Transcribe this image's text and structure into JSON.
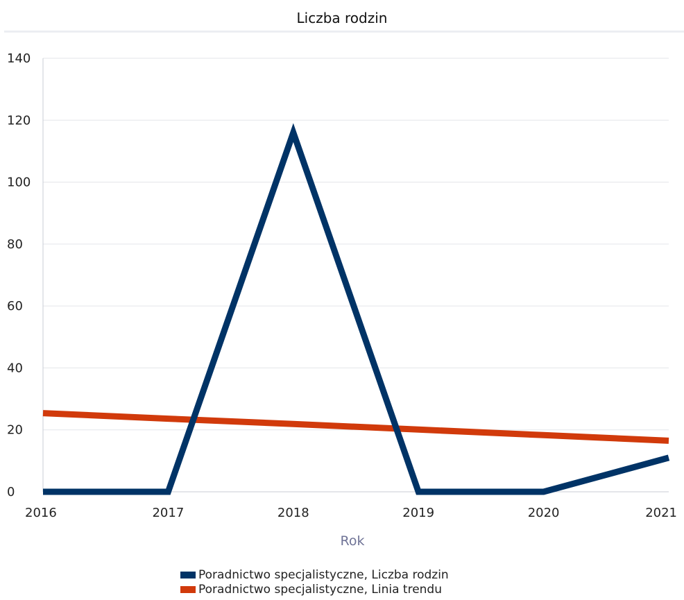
{
  "chart_data": {
    "type": "line",
    "title": "Liczba rodzin",
    "xlabel": "Rok",
    "ylabel": "",
    "x": [
      2016,
      2017,
      2018,
      2019,
      2020,
      2021
    ],
    "xlim": [
      2016,
      2021
    ],
    "ylim": [
      0,
      140
    ],
    "yticks": [
      0,
      20,
      40,
      60,
      80,
      100,
      120,
      140
    ],
    "grid": true,
    "legend_position": "bottom",
    "series": [
      {
        "name": "Poradnictwo specjalistyczne, Liczba rodzin",
        "color": "#003366",
        "values": [
          0,
          0,
          116,
          0,
          0,
          11
        ]
      },
      {
        "name": "Poradnictwo specjalistyczne, Linia trendu",
        "color": "#d13a0b",
        "values": [
          25.4,
          23.6,
          21.9,
          20.1,
          18.3,
          16.5
        ]
      }
    ]
  }
}
